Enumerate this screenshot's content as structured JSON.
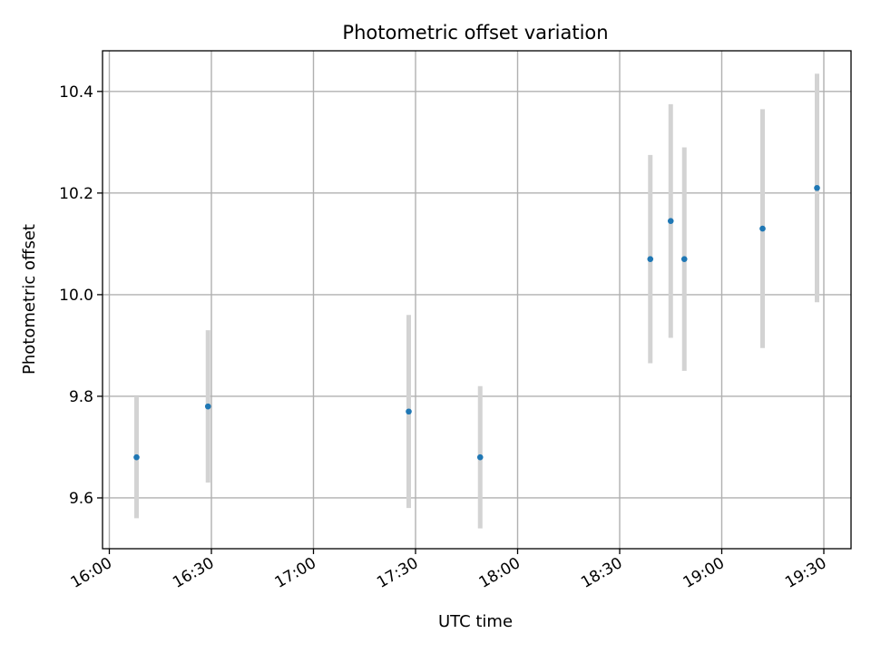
{
  "chart_data": {
    "type": "scatter",
    "title": "Photometric offset variation",
    "xlabel": "UTC time",
    "ylabel": "Photometric offset",
    "x_ticks": [
      "16:00",
      "16:30",
      "17:00",
      "17:30",
      "18:00",
      "18:30",
      "19:00",
      "19:30"
    ],
    "y_ticks": [
      "9.6",
      "9.8",
      "10.0",
      "10.2",
      "10.4"
    ],
    "xlim": [
      "15:58",
      "19:38"
    ],
    "ylim": [
      9.5,
      10.48
    ],
    "grid": true,
    "errorbar_color": "#d3d3d3",
    "point_color": "#1f77b4",
    "series": [
      {
        "points": [
          {
            "x": "16:08",
            "y": 9.68,
            "err": 0.12
          },
          {
            "x": "16:29",
            "y": 9.78,
            "err": 0.15
          },
          {
            "x": "17:28",
            "y": 9.77,
            "err": 0.19
          },
          {
            "x": "17:49",
            "y": 9.68,
            "err": 0.14
          },
          {
            "x": "18:39",
            "y": 10.07,
            "err": 0.205
          },
          {
            "x": "18:45",
            "y": 10.145,
            "err": 0.23
          },
          {
            "x": "18:49",
            "y": 10.07,
            "err": 0.22
          },
          {
            "x": "19:12",
            "y": 10.13,
            "err": 0.235
          },
          {
            "x": "19:28",
            "y": 10.21,
            "err": 0.225
          }
        ]
      }
    ]
  }
}
